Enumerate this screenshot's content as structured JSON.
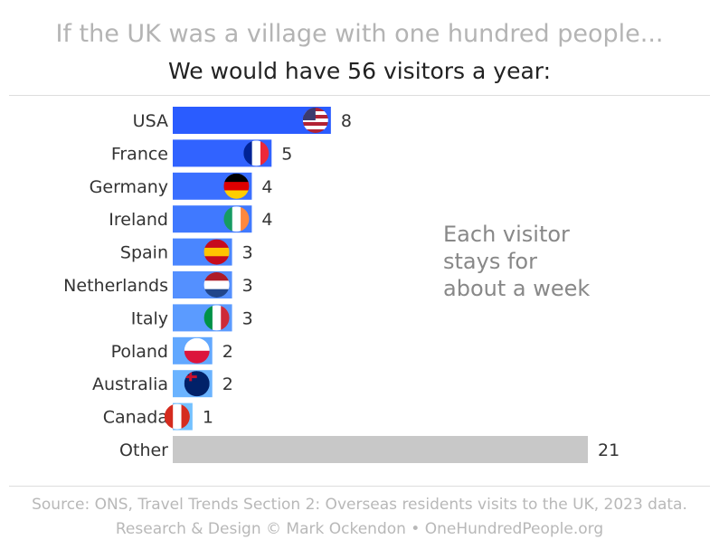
{
  "title": "If the UK was a village with one hundred people...",
  "subtitle": "We would have 56 visitors a year:",
  "annotation": [
    "Each visitor",
    "stays for",
    "about a week"
  ],
  "footer": [
    "Source: ONS, Travel Trends Section 2: Overseas residents visits to the UK, 2023 data.",
    "Research & Design © Mark Ockendon • OneHundredPeople.org"
  ],
  "chart_data": {
    "type": "bar",
    "orientation": "horizontal",
    "categories": [
      "USA",
      "France",
      "Germany",
      "Ireland",
      "Spain",
      "Netherlands",
      "Italy",
      "Poland",
      "Australia",
      "Canada",
      "Other"
    ],
    "values": [
      8,
      5,
      4,
      4,
      3,
      3,
      3,
      2,
      2,
      1,
      21
    ],
    "colors": [
      "#2a5cff",
      "#3163ff",
      "#3a6fff",
      "#4079ff",
      "#4a86ff",
      "#5490ff",
      "#5b9bff",
      "#62a8ff",
      "#6ab3ff",
      "#74c1ff",
      "#c8c8c8"
    ],
    "flag_icons": [
      "us-flag",
      "france-flag",
      "germany-flag",
      "ireland-flag",
      "spain-flag",
      "netherlands-flag",
      "italy-flag",
      "poland-flag",
      "australia-flag",
      "canada-flag",
      null
    ],
    "xlim": [
      0,
      21
    ],
    "grid": false,
    "legend": "none"
  }
}
